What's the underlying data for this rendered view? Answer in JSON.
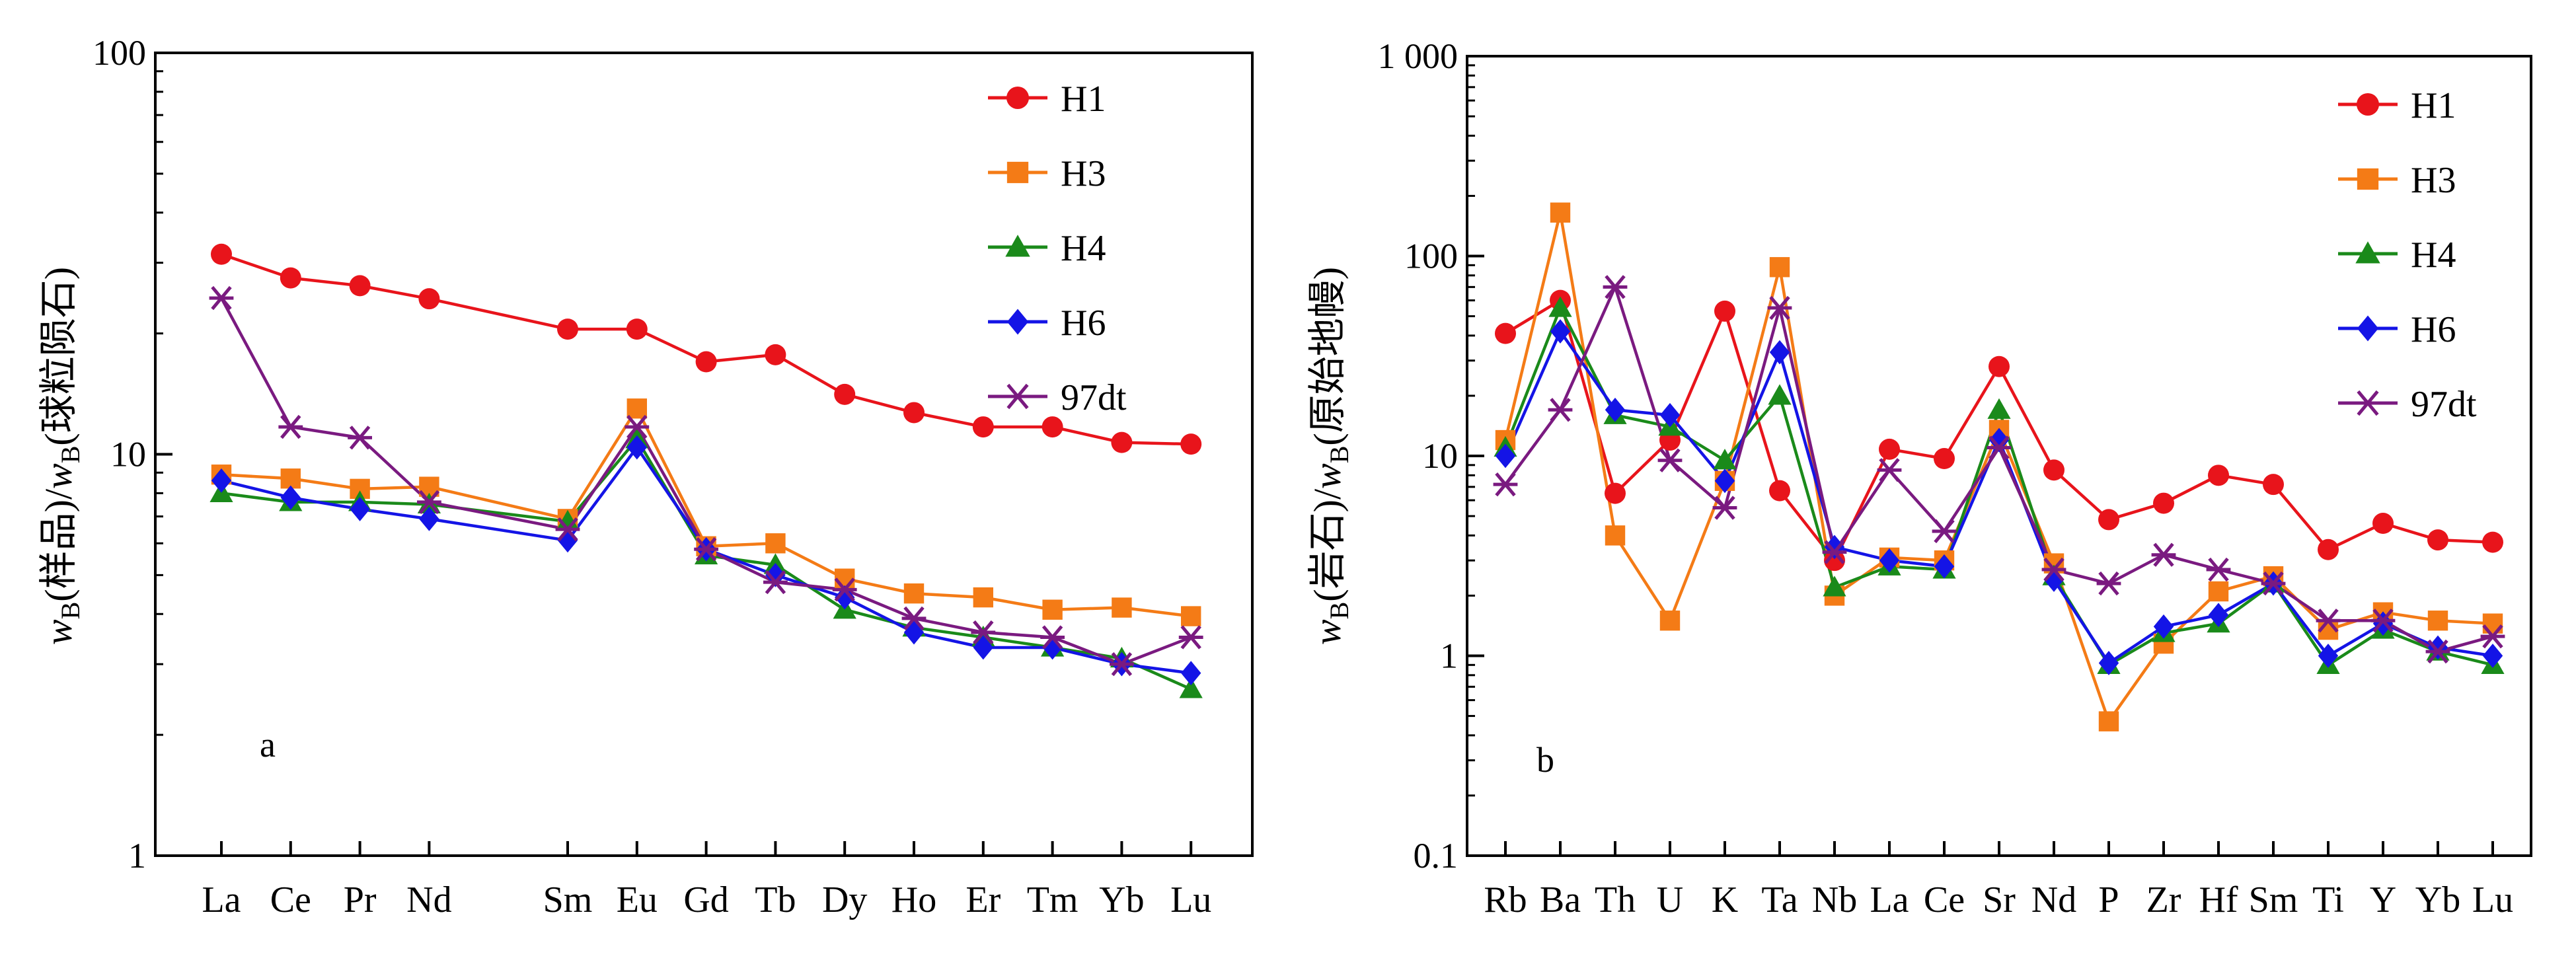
{
  "chart_data": [
    {
      "type": "line",
      "panel_label": "a",
      "y_scale": "log",
      "ylim": [
        1,
        100
      ],
      "ytick_values": [
        1,
        10,
        100
      ],
      "ytick_labels": [
        "1",
        "10",
        "100"
      ],
      "ylabel_parts": {
        "w1": "w",
        "sub1": "B",
        "mid": "(样品)/",
        "w2": "w",
        "sub2": "B",
        "end": "(球粒陨石)"
      },
      "categories": [
        "La",
        "Ce",
        "Pr",
        "Nd",
        "Sm",
        "Eu",
        "Gd",
        "Tb",
        "Dy",
        "Ho",
        "Er",
        "Tm",
        "Yb",
        "Lu"
      ],
      "category_positions": [
        1,
        2,
        3,
        4,
        6,
        7,
        8,
        9,
        10,
        11,
        12,
        13,
        14,
        15
      ],
      "legend": [
        "H1",
        "H3",
        "H4",
        "H6",
        "97dt"
      ],
      "series": [
        {
          "name": "H1",
          "color": "#e8141b",
          "marker": "circle",
          "values": [
            31.5,
            27.5,
            26.3,
            24.4,
            20.5,
            20.5,
            17.0,
            17.7,
            14.1,
            12.7,
            11.7,
            11.7,
            10.7,
            10.6
          ]
        },
        {
          "name": "H3",
          "color": "#f47b16",
          "marker": "square",
          "values": [
            8.9,
            8.7,
            8.2,
            8.3,
            6.9,
            13.0,
            5.9,
            6.0,
            4.9,
            4.5,
            4.4,
            4.1,
            4.15,
            3.95
          ]
        },
        {
          "name": "H4",
          "color": "#1a8a1a",
          "marker": "triangle",
          "values": [
            8.0,
            7.6,
            7.6,
            7.5,
            6.8,
            10.9,
            5.6,
            5.3,
            4.1,
            3.7,
            3.5,
            3.3,
            3.1,
            2.6
          ]
        },
        {
          "name": "H6",
          "color": "#1414e6",
          "marker": "diamond",
          "values": [
            8.6,
            7.8,
            7.3,
            6.9,
            6.1,
            10.4,
            5.8,
            5.0,
            4.4,
            3.6,
            3.3,
            3.3,
            3.0,
            2.85
          ]
        },
        {
          "name": "97dt",
          "color": "#7a1a80",
          "marker": "asterisk",
          "values": [
            24.5,
            11.7,
            11.0,
            7.6,
            6.5,
            11.7,
            5.8,
            4.8,
            4.6,
            3.9,
            3.6,
            3.5,
            3.0,
            3.5
          ]
        }
      ]
    },
    {
      "type": "line",
      "panel_label": "b",
      "y_scale": "log",
      "ylim": [
        0.1,
        1000
      ],
      "ytick_values": [
        0.1,
        1,
        10,
        100,
        1000
      ],
      "ytick_labels": [
        "0.1",
        "1",
        "10",
        "100",
        "1 000"
      ],
      "ylabel_parts": {
        "w1": "w",
        "sub1": "B",
        "mid": "(岩石)/",
        "w2": "w",
        "sub2": "B",
        "end": "(原始地幔)"
      },
      "categories": [
        "Rb",
        "Ba",
        "Th",
        "U",
        "K",
        "Ta",
        "Nb",
        "La",
        "Ce",
        "Sr",
        "Nd",
        "P",
        "Zr",
        "Hf",
        "Sm",
        "Ti",
        "Y",
        "Yb",
        "Lu"
      ],
      "legend": [
        "H1",
        "H3",
        "H4",
        "H6",
        "97dt"
      ],
      "series": [
        {
          "name": "H1",
          "color": "#e8141b",
          "marker": "circle",
          "values": [
            41,
            60,
            6.5,
            12,
            53,
            6.7,
            3.0,
            10.8,
            9.7,
            28,
            8.5,
            4.8,
            5.8,
            8.0,
            7.2,
            3.4,
            4.6,
            3.8,
            3.7
          ]
        },
        {
          "name": "H3",
          "color": "#f47b16",
          "marker": "square",
          "values": [
            12,
            165,
            4.0,
            1.5,
            7.5,
            88,
            2.0,
            3.1,
            3.0,
            13.5,
            2.9,
            0.47,
            1.15,
            2.1,
            2.5,
            1.35,
            1.65,
            1.5,
            1.45
          ]
        },
        {
          "name": "H4",
          "color": "#1a8a1a",
          "marker": "triangle",
          "values": [
            11,
            55,
            16,
            14,
            9.5,
            20,
            2.2,
            2.8,
            2.7,
            17,
            2.5,
            0.9,
            1.3,
            1.45,
            2.3,
            0.9,
            1.35,
            1.05,
            0.9
          ]
        },
        {
          "name": "H6",
          "color": "#1414e6",
          "marker": "diamond",
          "values": [
            10,
            42,
            17,
            16,
            7.5,
            33,
            3.5,
            3.0,
            2.8,
            12,
            2.4,
            0.92,
            1.4,
            1.6,
            2.3,
            1.0,
            1.45,
            1.1,
            1.0
          ]
        },
        {
          "name": "97dt",
          "color": "#7a1a80",
          "marker": "asterisk",
          "values": [
            7.2,
            17,
            70,
            9.5,
            5.5,
            55,
            3.3,
            8.5,
            4.2,
            11,
            2.7,
            2.3,
            3.2,
            2.7,
            2.3,
            1.5,
            1.5,
            1.05,
            1.25
          ]
        }
      ]
    }
  ]
}
